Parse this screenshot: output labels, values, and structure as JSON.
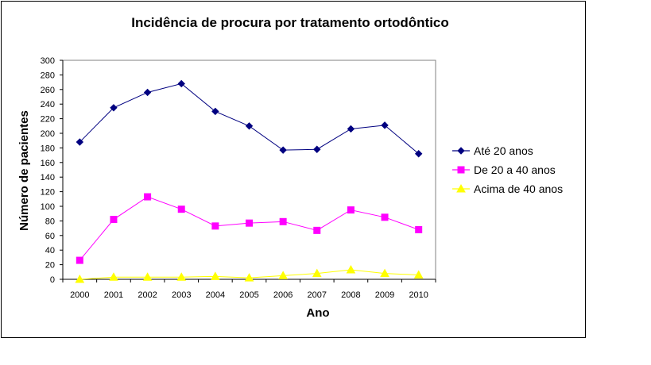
{
  "chart_data": {
    "type": "line",
    "title": "Incidência de procura por tratamento ortodôntico",
    "xlabel": "Ano",
    "ylabel": "Número de pacientes",
    "categories": [
      "2000",
      "2001",
      "2002",
      "2003",
      "2004",
      "2005",
      "2006",
      "2007",
      "2008",
      "2009",
      "2010"
    ],
    "ylim": [
      0,
      300
    ],
    "yticks": [
      0,
      20,
      40,
      60,
      80,
      100,
      120,
      140,
      160,
      180,
      200,
      220,
      240,
      260,
      280,
      300
    ],
    "grid": false,
    "legend_position": "right",
    "series": [
      {
        "name": "Até 20 anos",
        "color": "#000080",
        "marker": "diamond",
        "values": [
          188,
          235,
          256,
          268,
          230,
          210,
          177,
          178,
          206,
          211,
          172
        ]
      },
      {
        "name": "De 20 a 40 anos",
        "color": "#FF00FF",
        "marker": "square",
        "values": [
          26,
          82,
          113,
          96,
          73,
          77,
          79,
          67,
          95,
          85,
          68
        ]
      },
      {
        "name": "Acima de 40 anos",
        "color": "#FFFF00",
        "marker": "triangle",
        "values": [
          0,
          3,
          3,
          3,
          4,
          2,
          5,
          8,
          13,
          8,
          6
        ]
      }
    ]
  }
}
